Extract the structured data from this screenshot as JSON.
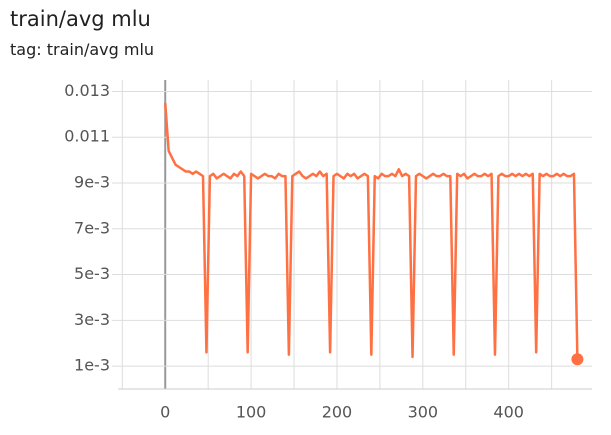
{
  "chart_data": {
    "type": "line",
    "title": "train/avg mlu",
    "subtitle": "tag: train/avg mlu",
    "x": [
      0,
      4,
      8,
      12,
      16,
      20,
      24,
      28,
      32,
      36,
      40,
      44,
      48,
      52,
      56,
      60,
      64,
      68,
      72,
      76,
      80,
      84,
      88,
      92,
      96,
      100,
      104,
      108,
      112,
      116,
      120,
      124,
      128,
      132,
      136,
      140,
      144,
      148,
      152,
      156,
      160,
      164,
      168,
      172,
      176,
      180,
      184,
      188,
      192,
      196,
      200,
      204,
      208,
      212,
      216,
      220,
      224,
      228,
      232,
      236,
      240,
      244,
      248,
      252,
      256,
      260,
      264,
      268,
      272,
      276,
      280,
      284,
      288,
      292,
      296,
      300,
      304,
      308,
      312,
      316,
      320,
      324,
      328,
      332,
      336,
      340,
      344,
      348,
      352,
      356,
      360,
      364,
      368,
      372,
      376,
      380,
      384,
      388,
      392,
      396,
      400,
      404,
      408,
      412,
      416,
      420,
      424,
      428,
      432,
      436,
      440,
      444,
      448,
      452,
      456,
      460,
      464,
      468,
      472,
      476,
      480
    ],
    "series": [
      {
        "name": "train/avg mlu",
        "color": "#ff7043",
        "values": [
          0.0125,
          0.0104,
          0.0101,
          0.0098,
          0.0097,
          0.0096,
          0.0095,
          0.0095,
          0.0094,
          0.0095,
          0.0094,
          0.0093,
          0.0016,
          0.0093,
          0.0094,
          0.0092,
          0.0093,
          0.0094,
          0.0093,
          0.0092,
          0.0094,
          0.0093,
          0.0095,
          0.0093,
          0.0016,
          0.0094,
          0.0093,
          0.0092,
          0.0093,
          0.0094,
          0.0093,
          0.0093,
          0.0092,
          0.0094,
          0.0093,
          0.0093,
          0.0015,
          0.0093,
          0.0094,
          0.0095,
          0.0093,
          0.0092,
          0.0093,
          0.0094,
          0.0093,
          0.0095,
          0.0093,
          0.0094,
          0.0016,
          0.0093,
          0.0094,
          0.0093,
          0.0092,
          0.0094,
          0.0093,
          0.0094,
          0.0092,
          0.0093,
          0.0094,
          0.0093,
          0.0015,
          0.0093,
          0.0092,
          0.0094,
          0.0093,
          0.0093,
          0.0094,
          0.0093,
          0.0096,
          0.0093,
          0.0094,
          0.0093,
          0.0014,
          0.0093,
          0.0094,
          0.0093,
          0.0092,
          0.0093,
          0.0094,
          0.0093,
          0.0093,
          0.0094,
          0.0093,
          0.0093,
          0.0015,
          0.0094,
          0.0093,
          0.0094,
          0.0092,
          0.0093,
          0.0094,
          0.0093,
          0.0093,
          0.0094,
          0.0093,
          0.0094,
          0.0015,
          0.0093,
          0.0094,
          0.0093,
          0.0093,
          0.0094,
          0.0093,
          0.0094,
          0.0093,
          0.0094,
          0.0093,
          0.0094,
          0.0016,
          0.0094,
          0.0093,
          0.0094,
          0.0093,
          0.0093,
          0.0094,
          0.0093,
          0.0094,
          0.0093,
          0.0093,
          0.0094,
          0.0013
        ]
      }
    ],
    "xlim": [
      -55,
      497
    ],
    "ylim": [
      0,
      0.0135
    ],
    "xticks": [
      0,
      100,
      200,
      300,
      400
    ],
    "xgrid_minor": [
      -50,
      50,
      150,
      250,
      350,
      450
    ],
    "yticks": [
      {
        "value": 0.001,
        "label": "1e-3"
      },
      {
        "value": 0.003,
        "label": "3e-3"
      },
      {
        "value": 0.005,
        "label": "5e-3"
      },
      {
        "value": 0.007,
        "label": "7e-3"
      },
      {
        "value": 0.009,
        "label": "9e-3"
      },
      0.011,
      0.013
    ],
    "grid": true,
    "highlight_last": true
  }
}
